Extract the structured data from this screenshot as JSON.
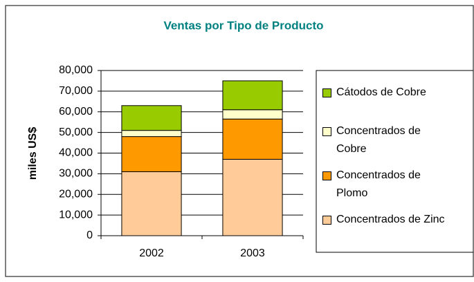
{
  "chart_data": {
    "type": "stacked_bar",
    "title": "Ventas por Tipo de Producto",
    "y_label": "miles US$",
    "categories": [
      "2002",
      "2003"
    ],
    "series": [
      {
        "name": "Concentrados de Zinc",
        "color": "#ffcc99",
        "values": [
          31000,
          37000
        ]
      },
      {
        "name": "Concentrados de Plomo",
        "color": "#ff9900",
        "values": [
          17000,
          19500
        ]
      },
      {
        "name": "Concentrados de Cobre",
        "color": "#ffffcc",
        "values": [
          3000,
          4500
        ]
      },
      {
        "name": "Cátodos de Cobre",
        "color": "#99cc00",
        "values": [
          12000,
          14000
        ]
      }
    ],
    "ylim": [
      0,
      80000
    ],
    "yticks": [
      0,
      {
        "value": 10000,
        "label": "10,000"
      },
      {
        "value": 20000,
        "label": "20,000"
      },
      {
        "value": 30000,
        "label": "30,000"
      },
      {
        "value": 40000,
        "label": "40,000"
      },
      {
        "value": 50000,
        "label": "50,000"
      },
      {
        "value": 60000,
        "label": "60,000"
      },
      {
        "value": 70000,
        "label": "70,000"
      },
      {
        "value": 80000,
        "label": "80,000"
      }
    ],
    "grid": true
  }
}
